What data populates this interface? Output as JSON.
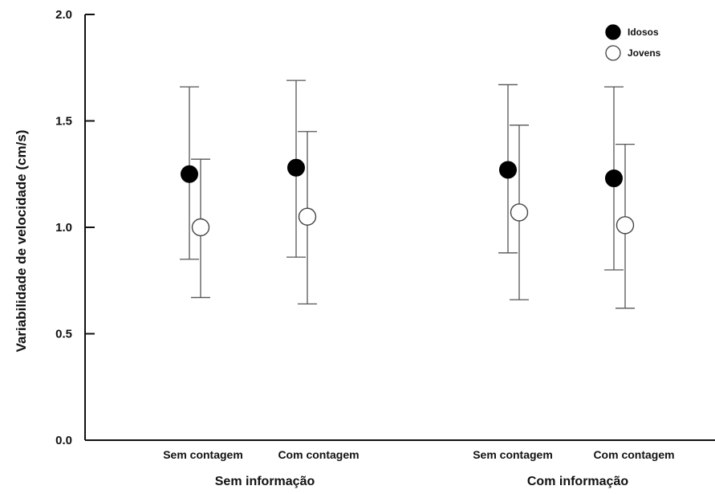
{
  "chart_data": {
    "type": "scatter",
    "title": "",
    "ylabel": "Variabilidade de velocidade  (cm/s)",
    "xlabel": "",
    "ylim": [
      0,
      2
    ],
    "yticks": [
      "0.0",
      "0.5",
      "1.0",
      "1.5",
      "2.0"
    ],
    "grid": false,
    "legend_position": "top-right",
    "groups": [
      "Sem informação",
      "Com informação"
    ],
    "categories": [
      "Sem contagem",
      "Com contagem",
      "Sem contagem",
      "Com contagem"
    ],
    "series": [
      {
        "name": "Idosos",
        "marker": "filled-circle",
        "color": "#000000",
        "values": [
          1.25,
          1.28,
          1.27,
          1.23
        ],
        "err_low": [
          0.85,
          0.86,
          0.88,
          0.8
        ],
        "err_high": [
          1.66,
          1.69,
          1.67,
          1.66
        ]
      },
      {
        "name": "Jovens",
        "marker": "open-circle",
        "color": "#ffffff",
        "values": [
          1.0,
          1.05,
          1.07,
          1.01
        ],
        "err_low": [
          0.67,
          0.64,
          0.66,
          0.62
        ],
        "err_high": [
          1.32,
          1.45,
          1.48,
          1.39
        ]
      }
    ]
  }
}
